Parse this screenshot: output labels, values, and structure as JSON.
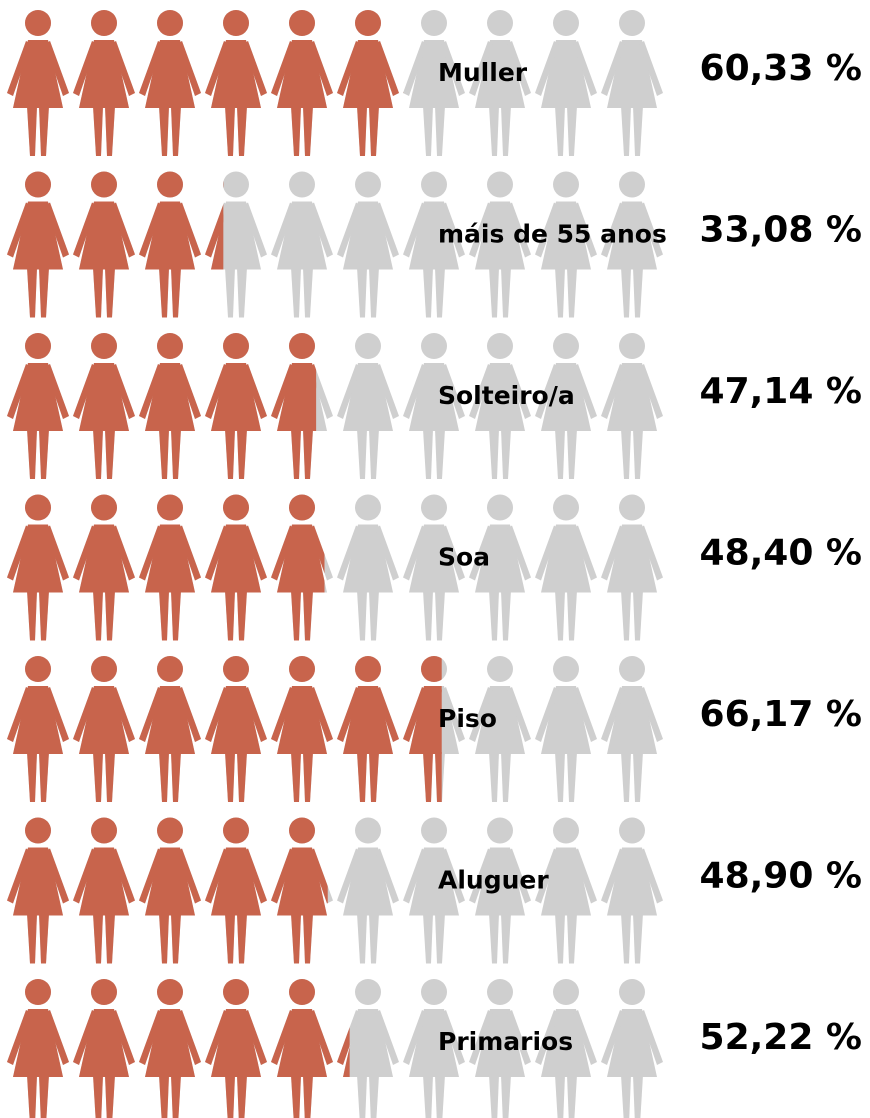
{
  "chart_data": {
    "type": "pictograph",
    "categories": [
      "Muller",
      "máis de 55 anos",
      "Solteiro/a",
      "Soa",
      "Piso",
      "Aluguer",
      "Primarios"
    ],
    "values": [
      60.33,
      33.08,
      47.14,
      48.4,
      66.17,
      48.9,
      52.22
    ],
    "value_labels": [
      "60,33 %",
      "33,08 %",
      "47,14 %",
      "48,40 %",
      "66,17 %",
      "48,90 %",
      "52,22 %"
    ],
    "color": "#c8644c",
    "background_color": "#cfcfcf",
    "icons": 10,
    "ylim": [
      0,
      100
    ]
  }
}
